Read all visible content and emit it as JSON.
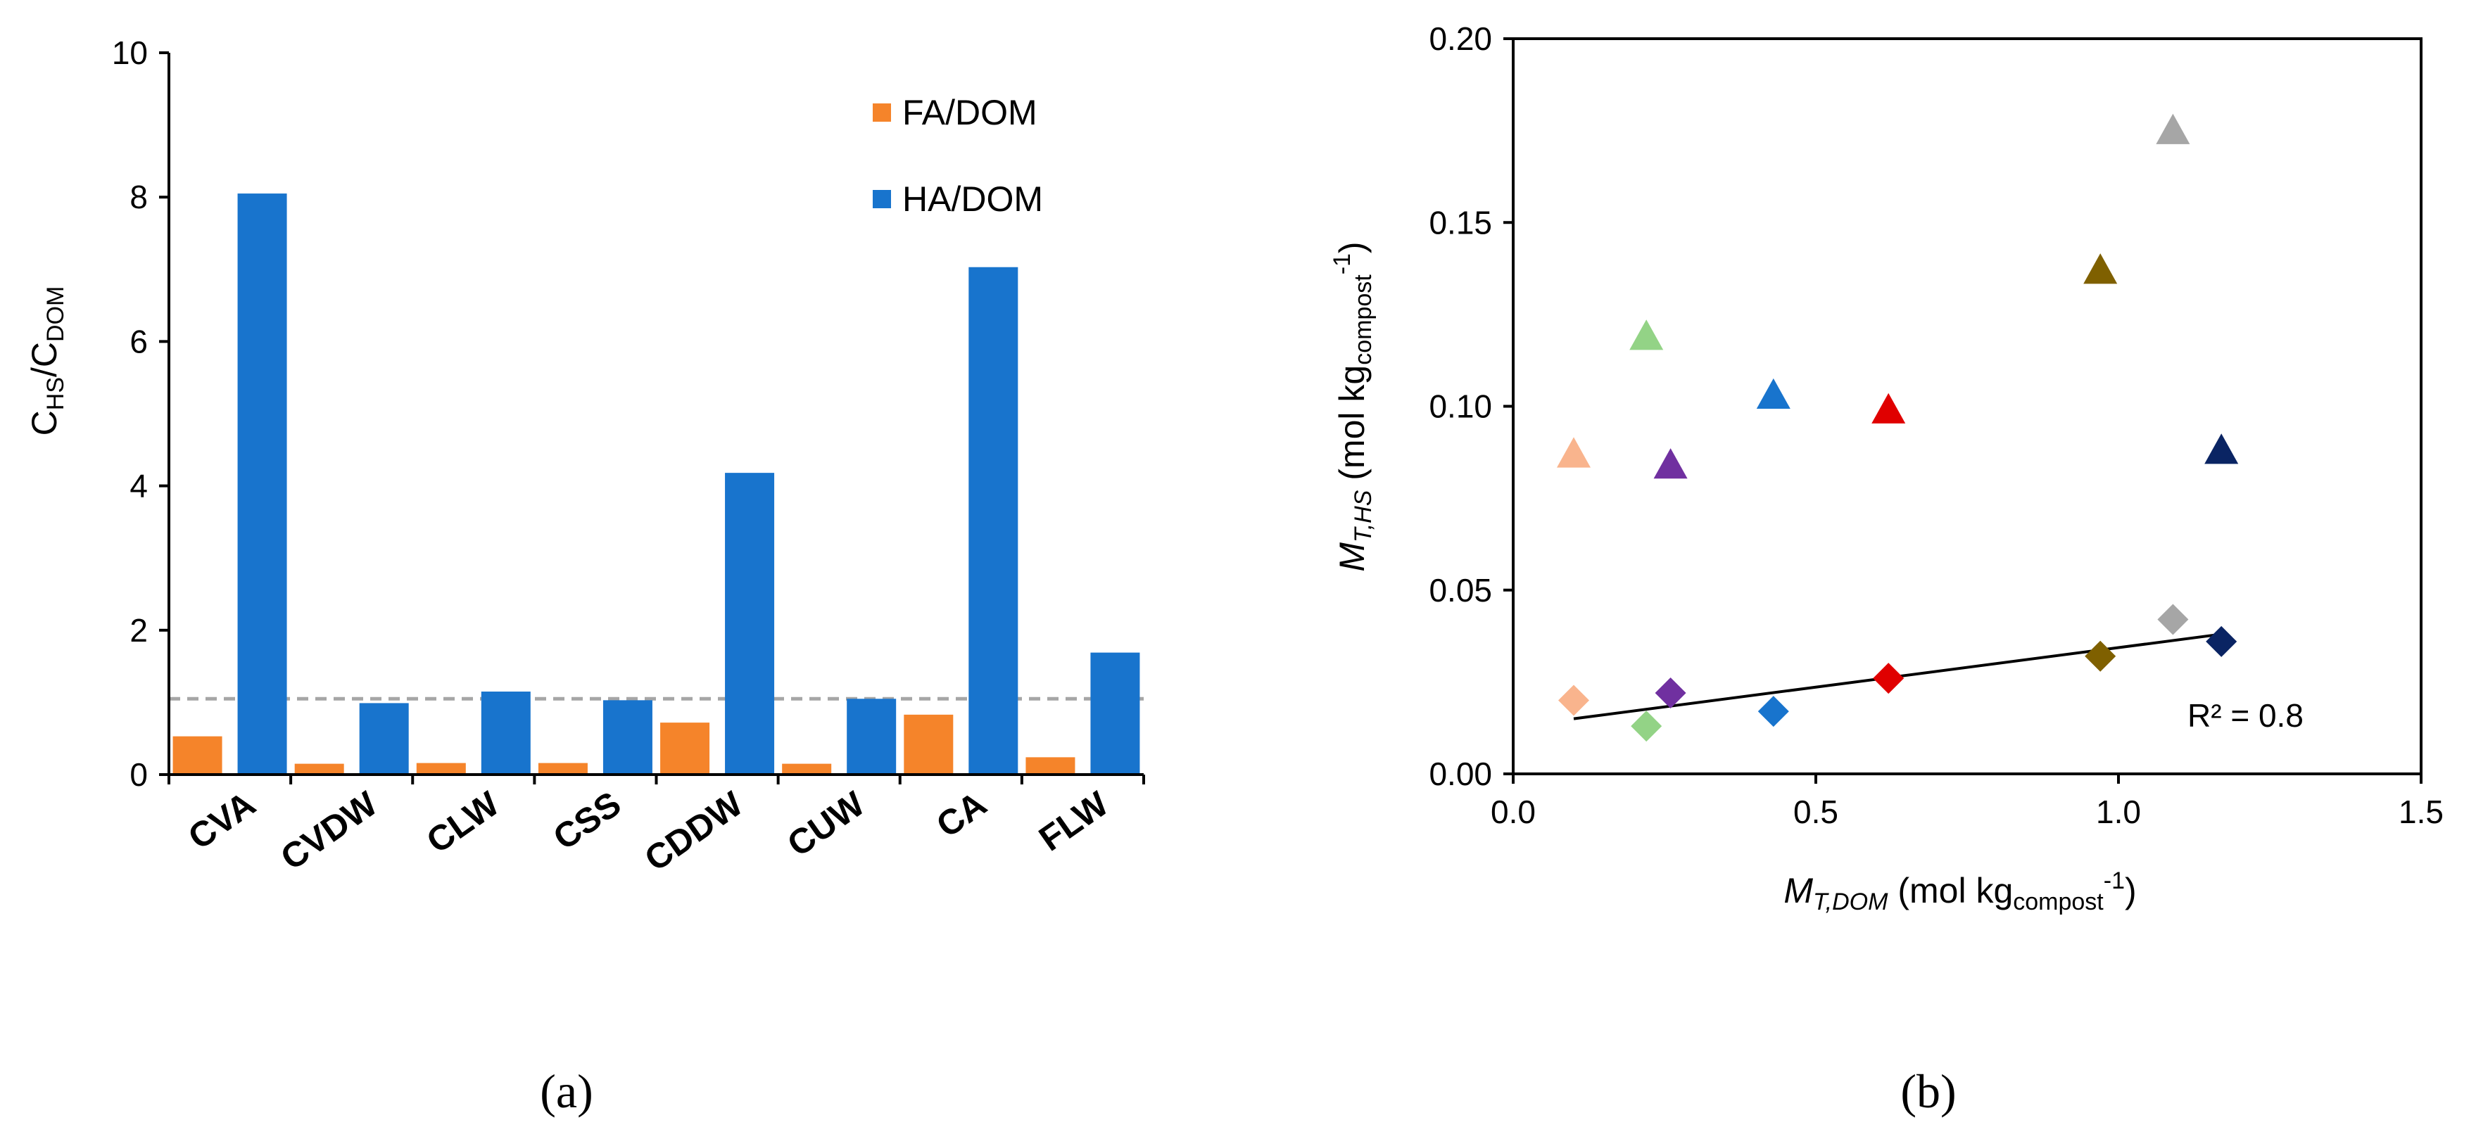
{
  "chart_data": [
    {
      "panel": "(a)",
      "type": "bar",
      "categories": [
        "CVA",
        "CVDW",
        "CLW",
        "CSS",
        "CDDW",
        "CUW",
        "CA",
        "FLW"
      ],
      "series": [
        {
          "name": "FA/DOM",
          "color": "#F5842A",
          "values": [
            0.53,
            0.15,
            0.16,
            0.16,
            0.72,
            0.15,
            0.83,
            0.24
          ]
        },
        {
          "name": "HA/DOM",
          "color": "#1874CD",
          "values": [
            8.05,
            0.99,
            1.15,
            1.03,
            4.18,
            1.05,
            7.03,
            1.69
          ]
        }
      ],
      "reference_line": {
        "y": 1.05,
        "style": "dashed",
        "color": "#A6A6A6"
      },
      "ylim": [
        0,
        10
      ],
      "yticks": [
        "0",
        "2",
        "4",
        "6",
        "8",
        "10"
      ],
      "ylabel": {
        "main": "C",
        "sub1": "HS",
        "sep": "/C",
        "sub2": "DOM"
      },
      "xlabel": "",
      "legend_position": "top-right"
    },
    {
      "panel": "(b)",
      "type": "scatter",
      "xlim": [
        0.0,
        1.5
      ],
      "ylim": [
        0.0,
        0.2
      ],
      "xticks": [
        "0.0",
        "0.5",
        "1.0",
        "1.5"
      ],
      "yticks": [
        "0.00",
        "0.05",
        "0.10",
        "0.15",
        "0.20"
      ],
      "xlabel": {
        "italic": "M",
        "italic_sub": "T,DOM",
        "rest": " (mol kg",
        "sub": "compost",
        "sup": "-1",
        "close": ")"
      },
      "ylabel": {
        "italic": "M",
        "italic_sub": "T,HS",
        "rest": " (mol kg",
        "sub": "compost",
        "sup": "-1",
        "close": ")"
      },
      "series": [
        {
          "name": "triangles",
          "marker": "triangle",
          "points": [
            {
              "x": 0.1,
              "y": 0.087,
              "color": "#F9B48D"
            },
            {
              "x": 0.22,
              "y": 0.119,
              "color": "#93D386"
            },
            {
              "x": 0.26,
              "y": 0.084,
              "color": "#7030A0"
            },
            {
              "x": 0.43,
              "y": 0.103,
              "color": "#1874CD"
            },
            {
              "x": 0.62,
              "y": 0.099,
              "color": "#E00000"
            },
            {
              "x": 0.97,
              "y": 0.137,
              "color": "#7F6000"
            },
            {
              "x": 1.09,
              "y": 0.175,
              "color": "#A6A6A6"
            },
            {
              "x": 1.17,
              "y": 0.088,
              "color": "#0A2463"
            }
          ]
        },
        {
          "name": "diamonds",
          "marker": "diamond",
          "points": [
            {
              "x": 0.1,
              "y": 0.02,
              "color": "#F9B48D"
            },
            {
              "x": 0.22,
              "y": 0.013,
              "color": "#93D386"
            },
            {
              "x": 0.26,
              "y": 0.022,
              "color": "#7030A0"
            },
            {
              "x": 0.43,
              "y": 0.017,
              "color": "#1874CD"
            },
            {
              "x": 0.62,
              "y": 0.026,
              "color": "#E00000"
            },
            {
              "x": 0.97,
              "y": 0.032,
              "color": "#7F6000"
            },
            {
              "x": 1.09,
              "y": 0.042,
              "color": "#A6A6A6"
            },
            {
              "x": 1.17,
              "y": 0.036,
              "color": "#0A2463"
            }
          ]
        }
      ],
      "trendline": {
        "x": [
          0.1,
          1.17
        ],
        "y": [
          0.015,
          0.038
        ],
        "color": "#000000"
      },
      "annotation": "R² = 0.8"
    }
  ]
}
